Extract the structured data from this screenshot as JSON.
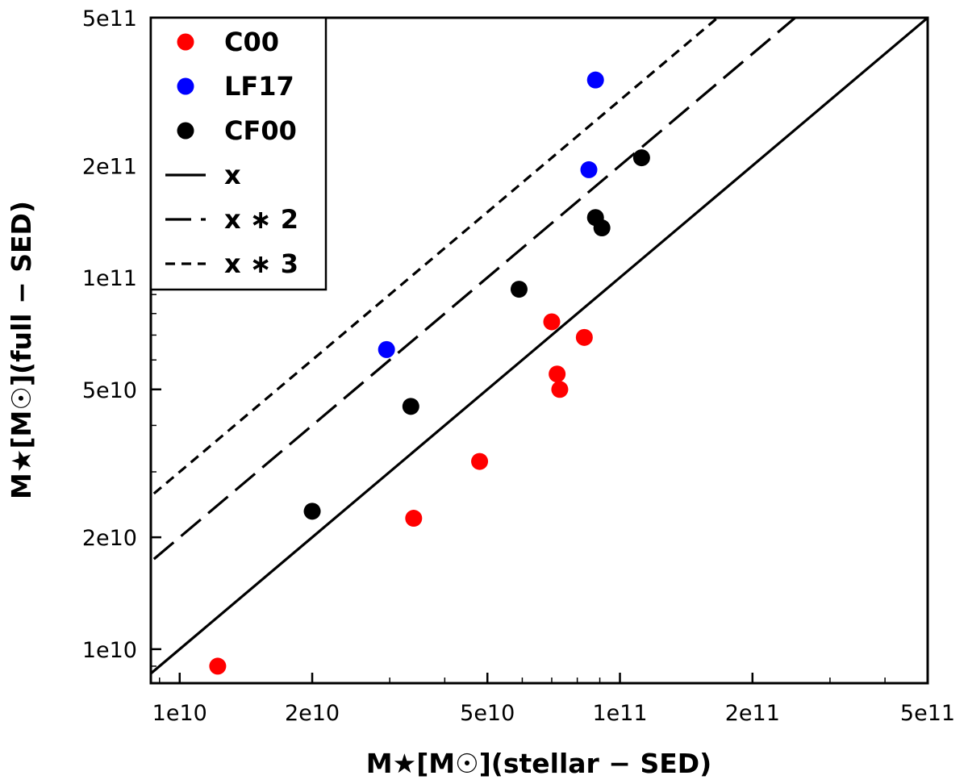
{
  "chart_data": {
    "type": "scatter",
    "title": "",
    "xlabel": "M★[M☉](stellar − SED)",
    "ylabel": "M★[M☉](full − SED)",
    "xscale": "log",
    "yscale": "log",
    "xlim": [
      8600000000.0,
      500000000000.0
    ],
    "ylim": [
      8100000000.0,
      500000000000.0
    ],
    "x_ticks": [
      {
        "value": 10000000000.0,
        "label": "1e10"
      },
      {
        "value": 20000000000.0,
        "label": "2e10"
      },
      {
        "value": 50000000000.0,
        "label": "5e10"
      },
      {
        "value": 100000000000.0,
        "label": "1e11"
      },
      {
        "value": 200000000000.0,
        "label": "2e11"
      },
      {
        "value": 500000000000.0,
        "label": "5e11"
      }
    ],
    "y_ticks": [
      {
        "value": 10000000000.0,
        "label": "1e10"
      },
      {
        "value": 20000000000.0,
        "label": "2e10"
      },
      {
        "value": 50000000000.0,
        "label": "5e10"
      },
      {
        "value": 100000000000.0,
        "label": "1e11"
      },
      {
        "value": 200000000000.0,
        "label": "2e11"
      },
      {
        "value": 500000000000.0,
        "label": "5e11"
      }
    ],
    "grid": false,
    "legend_position": "top-left",
    "series": [
      {
        "name": "C00",
        "kind": "scatter",
        "color": "#ff0000",
        "points": [
          [
            12200000000.0,
            9000000000.0
          ],
          [
            34000000000.0,
            22500000000.0
          ],
          [
            48000000000.0,
            32000000000.0
          ],
          [
            70000000000.0,
            76000000000.0
          ],
          [
            72000000000.0,
            55000000000.0
          ],
          [
            73000000000.0,
            50000000000.0
          ],
          [
            83000000000.0,
            69000000000.0
          ]
        ]
      },
      {
        "name": "LF17",
        "kind": "scatter",
        "color": "#0000ff",
        "points": [
          [
            29500000000.0,
            64000000000.0
          ],
          [
            85000000000.0,
            195000000000.0
          ],
          [
            88000000000.0,
            340000000000.0
          ]
        ]
      },
      {
        "name": "CF00",
        "kind": "scatter",
        "color": "#000000",
        "points": [
          [
            20000000000.0,
            23500000000.0
          ],
          [
            33500000000.0,
            45000000000.0
          ],
          [
            59000000000.0,
            93000000000.0
          ],
          [
            88000000000.0,
            145000000000.0
          ],
          [
            91000000000.0,
            136000000000.0
          ],
          [
            112000000000.0,
            210000000000.0
          ]
        ]
      },
      {
        "name": "x",
        "kind": "line",
        "factor": 1,
        "dash": "solid",
        "color": "#000000"
      },
      {
        "name": "x ∗ 2",
        "kind": "line",
        "factor": 2,
        "dash": "long",
        "color": "#000000"
      },
      {
        "name": "x ∗ 3",
        "kind": "line",
        "factor": 3,
        "dash": "short",
        "color": "#000000"
      }
    ]
  }
}
